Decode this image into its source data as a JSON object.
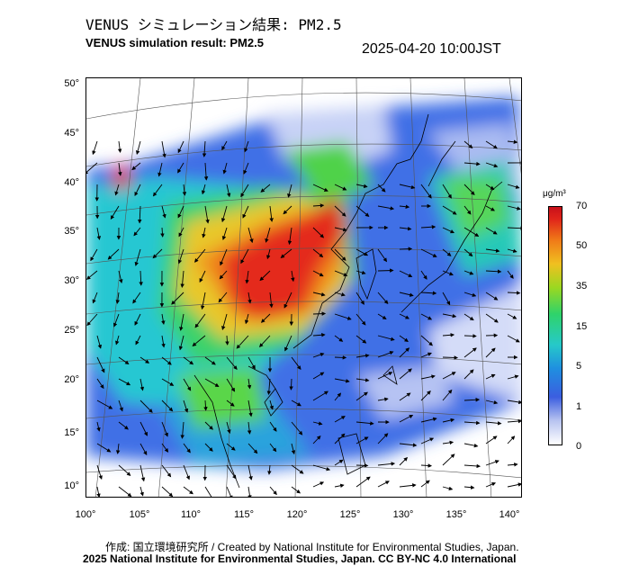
{
  "header": {
    "title_jp": "VENUS シミュレーション結果: PM2.5",
    "title_en": "VENUS simulation result: PM2.5",
    "datetime": "2025-04-20 10:00JST"
  },
  "map": {
    "lat_ticks": [
      "50°",
      "45°",
      "40°",
      "35°",
      "30°",
      "25°",
      "20°",
      "15°",
      "10°"
    ],
    "lon_ticks": [
      "100°",
      "105°",
      "110°",
      "115°",
      "120°",
      "125°",
      "130°",
      "135°",
      "140°"
    ],
    "overlay": "wind-vector-arrows"
  },
  "colorbar": {
    "unit": "μg/m³",
    "ticks": [
      "70",
      "50",
      "35",
      "15",
      "5",
      "1",
      "0"
    ],
    "colors": [
      "#ffffff",
      "#3b5ee0",
      "#26c9c9",
      "#2fd36a",
      "#f0c020",
      "#f07a18",
      "#e0241a"
    ]
  },
  "footer": {
    "credit_jp": "作成: 国立環境研究所 / Created by National Institute for Environmental Studies, Japan.",
    "credit_en": "2025 National Institute for Environmental Studies, Japan. CC BY-NC 4.0 International"
  }
}
